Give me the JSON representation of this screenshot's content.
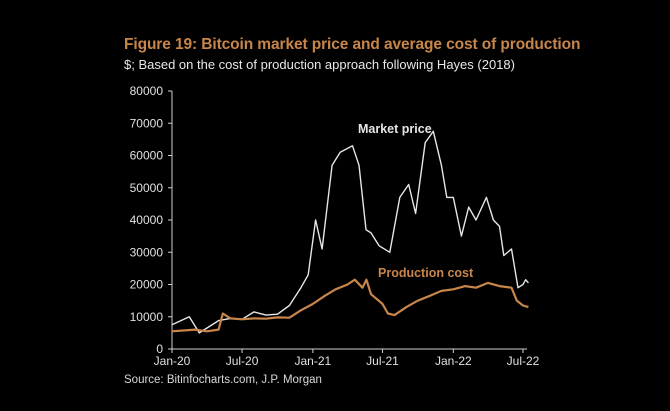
{
  "chart_data": {
    "type": "line",
    "title": "Figure 19: Bitcoin market price and average cost of production",
    "subtitle": "$; Based on the cost of production approach following Hayes (2018)",
    "source": "Source: Bitinfocharts.com, J.P. Morgan",
    "xlabel": "",
    "ylabel": "",
    "ylim": [
      0,
      80000
    ],
    "xlim": [
      "2020-01-01",
      "2022-07-01"
    ],
    "yticks": [
      "0",
      "10000",
      "20000",
      "30000",
      "40000",
      "50000",
      "60000",
      "70000",
      "80000"
    ],
    "xticks": [
      {
        "date": "2020-01-01",
        "label": "Jan-20"
      },
      {
        "date": "2020-07-01",
        "label": "Jul-20"
      },
      {
        "date": "2021-01-01",
        "label": "Jan-21"
      },
      {
        "date": "2021-07-01",
        "label": "Jul-21"
      },
      {
        "date": "2022-01-01",
        "label": "Jan-22"
      },
      {
        "date": "2022-07-01",
        "label": "Jul-22"
      }
    ],
    "grid": false,
    "series": [
      {
        "name": "Market price",
        "color": "#e6e6e6",
        "x": [
          "2020-01-01",
          "2020-02-15",
          "2020-03-12",
          "2020-04-01",
          "2020-05-01",
          "2020-06-01",
          "2020-07-01",
          "2020-08-01",
          "2020-09-01",
          "2020-10-01",
          "2020-11-01",
          "2020-12-01",
          "2020-12-20",
          "2021-01-08",
          "2021-01-25",
          "2021-02-20",
          "2021-03-13",
          "2021-04-14",
          "2021-05-01",
          "2021-05-19",
          "2021-06-01",
          "2021-06-22",
          "2021-07-20",
          "2021-08-15",
          "2021-09-07",
          "2021-09-25",
          "2021-10-20",
          "2021-11-10",
          "2021-12-01",
          "2021-12-15",
          "2022-01-01",
          "2022-01-22",
          "2022-02-10",
          "2022-03-01",
          "2022-03-28",
          "2022-04-15",
          "2022-05-01",
          "2022-05-12",
          "2022-06-01",
          "2022-06-18",
          "2022-07-01",
          "2022-07-08",
          "2022-07-15"
        ],
        "y": [
          7500,
          10000,
          5000,
          6500,
          8800,
          9500,
          9200,
          11500,
          10500,
          10800,
          13500,
          19000,
          23000,
          40000,
          31000,
          57000,
          61000,
          63000,
          57000,
          37000,
          36000,
          32000,
          30000,
          47000,
          51000,
          42000,
          64000,
          67500,
          57000,
          47000,
          47000,
          35000,
          44000,
          40000,
          47000,
          40000,
          38000,
          29000,
          31000,
          19000,
          20000,
          21500,
          20500
        ]
      },
      {
        "name": "Production cost",
        "color": "#c8864a",
        "x": [
          "2020-01-01",
          "2020-03-01",
          "2020-04-01",
          "2020-05-01",
          "2020-05-12",
          "2020-06-01",
          "2020-07-01",
          "2020-08-01",
          "2020-09-01",
          "2020-10-01",
          "2020-11-01",
          "2020-12-01",
          "2021-01-01",
          "2021-02-01",
          "2021-03-01",
          "2021-04-01",
          "2021-04-20",
          "2021-05-10",
          "2021-05-20",
          "2021-06-01",
          "2021-07-01",
          "2021-07-15",
          "2021-08-01",
          "2021-09-01",
          "2021-10-01",
          "2021-11-01",
          "2021-12-01",
          "2022-01-01",
          "2022-02-01",
          "2022-03-01",
          "2022-04-01",
          "2022-05-01",
          "2022-06-01",
          "2022-06-15",
          "2022-07-01",
          "2022-07-15"
        ],
        "y": [
          5500,
          6000,
          5500,
          6000,
          11000,
          9500,
          9200,
          9500,
          9400,
          9800,
          9700,
          12000,
          14000,
          16500,
          18500,
          20000,
          21500,
          19000,
          21500,
          17000,
          14000,
          11000,
          10500,
          13000,
          15000,
          16500,
          18000,
          18500,
          19500,
          19000,
          20500,
          19500,
          19000,
          15000,
          13500,
          13000
        ]
      }
    ]
  }
}
